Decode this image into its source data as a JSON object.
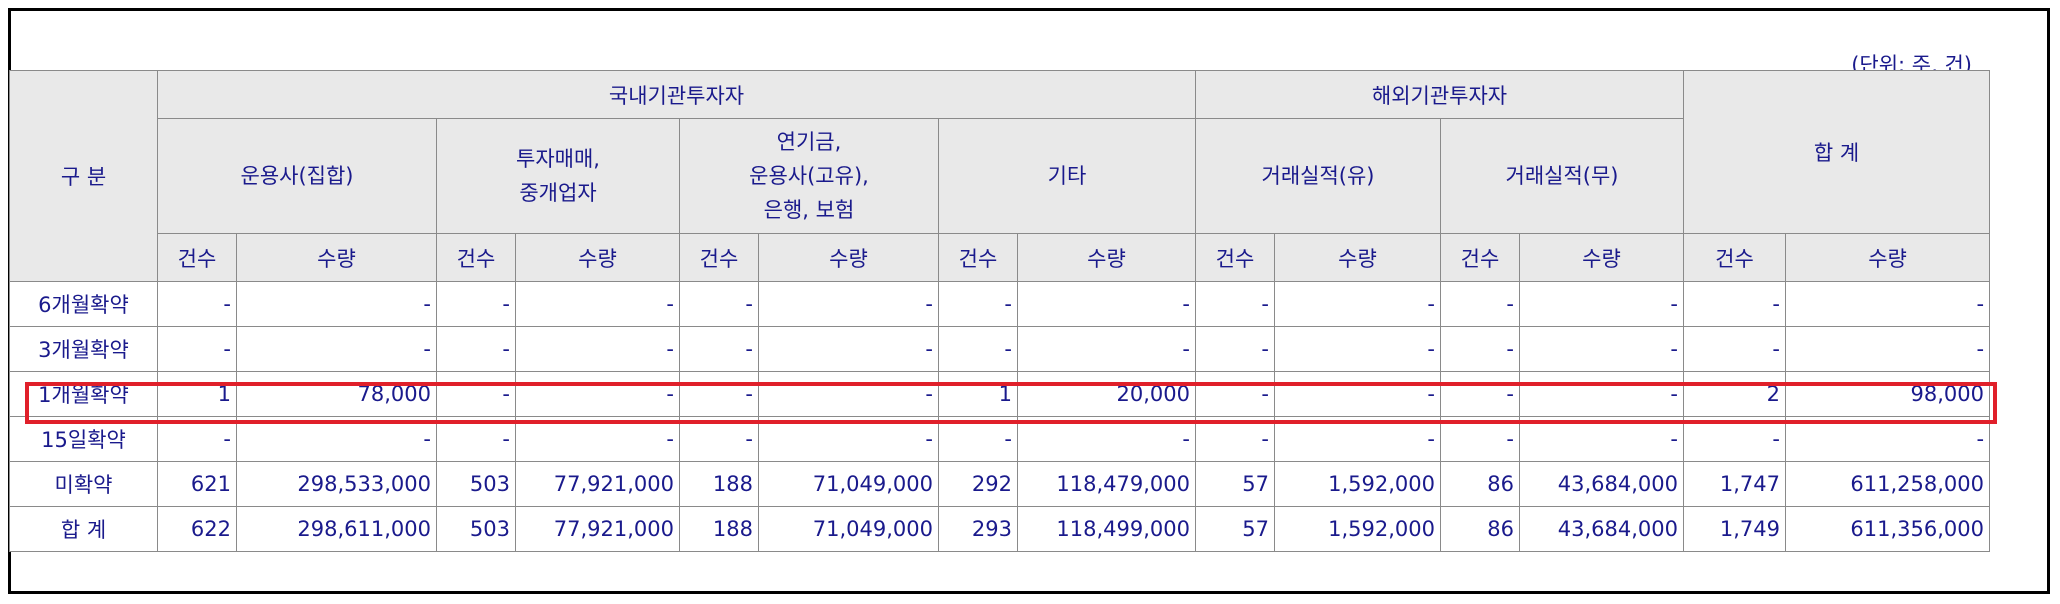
{
  "unit_label": "(단위: 주, 건)",
  "header": {
    "category": "구 분",
    "domestic": "국내기관투자자",
    "overseas": "해외기관투자자",
    "total": "합 계",
    "sub": {
      "asset_mgmt_collective": "운용사(집합)",
      "trading_broker_line1": "투자매매,",
      "trading_broker_line2": "중개업자",
      "pension_line1": "연기금,",
      "pension_line2": "운용사(고유),",
      "pension_line3": "은행, 보험",
      "other": "기타",
      "track_yes": "거래실적(유)",
      "track_no": "거래실적(무)"
    },
    "count": "건수",
    "quantity": "수량"
  },
  "rows": [
    {
      "label": "6개월확약",
      "c1": "-",
      "q1": "-",
      "c2": "-",
      "q2": "-",
      "c3": "-",
      "q3": "-",
      "c4": "-",
      "q4": "-",
      "c5": "-",
      "q5": "-",
      "c6": "-",
      "q6": "-",
      "ct": "-",
      "qt": "-"
    },
    {
      "label": "3개월확약",
      "c1": "-",
      "q1": "-",
      "c2": "-",
      "q2": "-",
      "c3": "-",
      "q3": "-",
      "c4": "-",
      "q4": "-",
      "c5": "-",
      "q5": "-",
      "c6": "-",
      "q6": "-",
      "ct": "-",
      "qt": "-"
    },
    {
      "label": "1개월확약",
      "c1": "1",
      "q1": "78,000",
      "c2": "-",
      "q2": "-",
      "c3": "-",
      "q3": "-",
      "c4": "1",
      "q4": "20,000",
      "c5": "-",
      "q5": "-",
      "c6": "-",
      "q6": "-",
      "ct": "2",
      "qt": "98,000"
    },
    {
      "label": "15일확약",
      "c1": "-",
      "q1": "-",
      "c2": "-",
      "q2": "-",
      "c3": "-",
      "q3": "-",
      "c4": "-",
      "q4": "-",
      "c5": "-",
      "q5": "-",
      "c6": "-",
      "q6": "-",
      "ct": "-",
      "qt": "-"
    },
    {
      "label": "미확약",
      "c1": "621",
      "q1": "298,533,000",
      "c2": "503",
      "q2": "77,921,000",
      "c3": "188",
      "q3": "71,049,000",
      "c4": "292",
      "q4": "118,479,000",
      "c5": "57",
      "q5": "1,592,000",
      "c6": "86",
      "q6": "43,684,000",
      "ct": "1,747",
      "qt": "611,258,000"
    },
    {
      "label": "합 계",
      "c1": "622",
      "q1": "298,611,000",
      "c2": "503",
      "q2": "77,921,000",
      "c3": "188",
      "q3": "71,049,000",
      "c4": "293",
      "q4": "118,499,000",
      "c5": "57",
      "q5": "1,592,000",
      "c6": "86",
      "q6": "43,684,000",
      "ct": "1,749",
      "qt": "611,356,000"
    }
  ],
  "highlight_color": "#e0202a",
  "text_color": "#1a1a8c",
  "header_bg": "#e9e9e9"
}
